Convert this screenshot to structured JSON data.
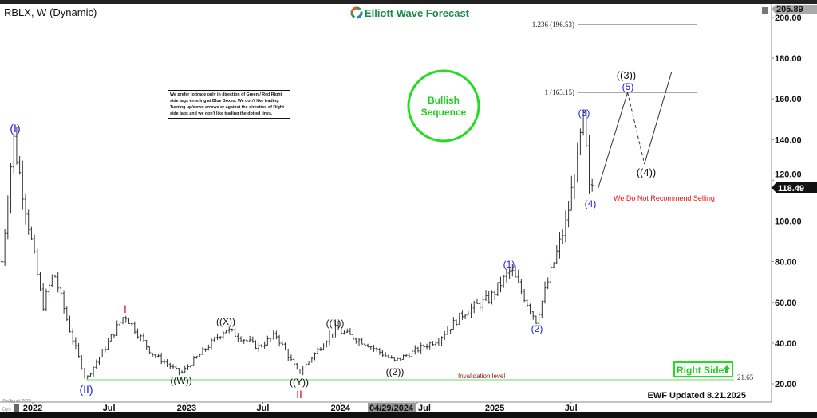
{
  "header": {
    "symbol_title": "RBLX, W (Dynamic)",
    "brand": "Elliott Wave Forecast"
  },
  "notice": "We prefer to trade only in direction of Green / Red Right side tags entering at Blue Boxes. We don't like trading Turning up/down arrows or against the direction of Right side tags and we don't like trading the dotted lines.",
  "bullish_badge": {
    "line1": "Bullish",
    "line2": "Sequence",
    "color": "#22dd22"
  },
  "right_side_tag": {
    "label": "Right Side",
    "icon": "arrow-up-icon",
    "color": "#22dd22"
  },
  "recommendation": "We Do Not Recommend Selling",
  "invalidation": {
    "label": "Invalidation level",
    "value": "21.65"
  },
  "footer": {
    "updated": "EWF Updated 8.21.2025",
    "copyright": "© eSignal, 2025",
    "dyn": "Dyn"
  },
  "price_tags": {
    "high": "205.89",
    "last": "118.49"
  },
  "fib_levels": [
    {
      "label": "1.236 (196.53)",
      "price": 196.53
    },
    {
      "label": "1 (163.15)",
      "price": 163.15
    }
  ],
  "chart_data": {
    "type": "ohlc",
    "interval": "weekly",
    "ylim": [
      20,
      205.89
    ],
    "y_ticks": [
      "200.00",
      "180.00",
      "160.00",
      "140.00",
      "120.00",
      "100.00",
      "80.00",
      "60.00",
      "40.00",
      "20.00"
    ],
    "x_ticks": [
      "2022",
      "Jul",
      "2023",
      "Jul",
      "2024",
      "Jul",
      "2025",
      "Jul"
    ],
    "x_cursor_label": "04/29/2024",
    "grid": false,
    "price_path": [
      [
        "2021-10-20",
        80
      ],
      [
        "2021-11-16",
        141
      ],
      [
        "2022-01-25",
        58
      ],
      [
        "2022-02-20",
        75
      ],
      [
        "2022-04-01",
        45
      ],
      [
        "2022-05-07",
        22
      ],
      [
        "2022-08-07",
        54
      ],
      [
        "2022-10-10",
        35
      ],
      [
        "2022-12-18",
        25
      ],
      [
        "2023-04-03",
        47
      ],
      [
        "2023-06-20",
        38
      ],
      [
        "2023-08-01",
        44
      ],
      [
        "2023-09-24",
        25
      ],
      [
        "2023-12-18",
        47
      ],
      [
        "2024-03-01",
        40
      ],
      [
        "2024-05-08",
        31
      ],
      [
        "2024-08-20",
        42
      ],
      [
        "2024-10-20",
        55
      ],
      [
        "2024-12-20",
        62
      ],
      [
        "2025-02-08",
        76
      ],
      [
        "2025-04-09",
        51
      ],
      [
        "2025-06-20",
        100
      ],
      [
        "2025-07-31",
        150
      ],
      [
        "2025-08-14",
        112
      ],
      [
        "2025-08-21",
        118.49
      ]
    ],
    "projection": [
      [
        "2025-09-03",
        116
      ],
      [
        "2025-11-12",
        163.15
      ],
      [
        "2025-12-22",
        128
      ],
      [
        "2026-02-24",
        173
      ]
    ],
    "wave_labels": [
      {
        "text": "(I)",
        "color": "blue"
      },
      {
        "text": "(II)",
        "color": "blue"
      },
      {
        "text": "I",
        "color": "red"
      },
      {
        "text": "II",
        "color": "red"
      },
      {
        "text": "((W))",
        "color": "black"
      },
      {
        "text": "((X))",
        "color": "black"
      },
      {
        "text": "((Y))",
        "color": "black"
      },
      {
        "text": "((1))",
        "color": "black"
      },
      {
        "text": "((2))",
        "color": "black"
      },
      {
        "text": "(1)",
        "color": "blue"
      },
      {
        "text": "(2)",
        "color": "blue"
      },
      {
        "text": "(3)",
        "color": "blue"
      },
      {
        "text": "(4)",
        "color": "blue"
      },
      {
        "text": "(5)",
        "color": "blue"
      },
      {
        "text": "((3))",
        "color": "black"
      },
      {
        "text": "((4))",
        "color": "black"
      }
    ]
  }
}
